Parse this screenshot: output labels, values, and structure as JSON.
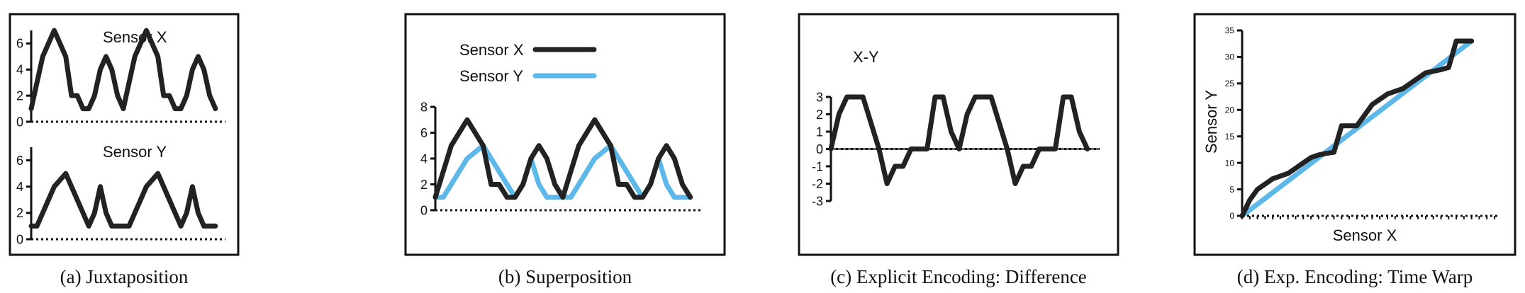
{
  "colors": {
    "sensor_x": "#222222",
    "sensor_y": "#5bb8e8",
    "frame": "#111111"
  },
  "captions": {
    "a": "(a)  Juxtaposition",
    "b": "(b)  Superposition",
    "c": "(c)  Explicit Encoding: Difference",
    "d": "(d)  Exp. Encoding: Time Warp"
  },
  "chart_data": [
    {
      "id": "a_top",
      "type": "line",
      "title": "Sensor X",
      "ylim": [
        0,
        7
      ],
      "xlim": [
        0,
        33
      ],
      "yticks": [
        "0",
        "2",
        "4",
        "6"
      ],
      "series": [
        {
          "values": [
            1,
            3,
            5,
            6,
            7,
            6,
            5,
            2,
            2,
            1,
            1,
            2,
            4,
            5,
            4,
            2,
            1,
            3,
            5,
            6,
            7,
            6,
            5,
            2,
            2,
            1,
            1,
            2,
            4,
            5,
            4,
            2,
            1
          ]
        }
      ]
    },
    {
      "id": "a_bottom",
      "type": "line",
      "title": "Sensor Y",
      "ylim": [
        0,
        7
      ],
      "xlim": [
        0,
        33
      ],
      "yticks": [
        "0",
        "2",
        "4",
        "6"
      ],
      "series": [
        {
          "values": [
            1,
            1,
            2,
            3,
            4,
            4.5,
            5,
            4,
            3,
            2,
            1,
            2,
            4,
            2,
            1,
            1,
            1,
            1,
            2,
            3,
            4,
            4.5,
            5,
            4,
            3,
            2,
            1,
            2,
            4,
            2,
            1,
            1,
            1
          ]
        }
      ]
    },
    {
      "id": "b",
      "type": "line",
      "ylim": [
        0,
        8
      ],
      "xlim": [
        0,
        33
      ],
      "yticks": [
        "0",
        "2",
        "4",
        "6",
        "8"
      ],
      "legend": "top-left",
      "series": [
        {
          "name": "Sensor X",
          "values": [
            1,
            3,
            5,
            6,
            7,
            6,
            5,
            2,
            2,
            1,
            1,
            2,
            4,
            5,
            4,
            2,
            1,
            3,
            5,
            6,
            7,
            6,
            5,
            2,
            2,
            1,
            1,
            2,
            4,
            5,
            4,
            2,
            1
          ]
        },
        {
          "name": "Sensor Y",
          "values": [
            1,
            1,
            2,
            3,
            4,
            4.5,
            5,
            4,
            3,
            2,
            1,
            2,
            4,
            2,
            1,
            1,
            1,
            1,
            2,
            3,
            4,
            4.5,
            5,
            4,
            3,
            2,
            1,
            2,
            4,
            2,
            1,
            1,
            1
          ]
        }
      ]
    },
    {
      "id": "c",
      "type": "line",
      "title": "X-Y",
      "ylim": [
        -3,
        3
      ],
      "xlim": [
        0,
        33
      ],
      "yticks": [
        "-3",
        "-2",
        "-1",
        "0",
        "1",
        "2",
        "3"
      ],
      "series": [
        {
          "values": [
            0,
            2,
            3,
            3,
            3,
            1.5,
            0,
            -2,
            -1,
            -1,
            0,
            0,
            0,
            3,
            3,
            1,
            0,
            2,
            3,
            3,
            3,
            1.5,
            0,
            -2,
            -1,
            -1,
            0,
            0,
            0,
            3,
            3,
            1,
            0
          ]
        }
      ]
    },
    {
      "id": "d",
      "type": "line",
      "xlabel": "Sensor X",
      "ylabel": "Sensor Y",
      "ylim": [
        0,
        35
      ],
      "xlim": [
        0,
        33
      ],
      "yticks": [
        "0",
        "5",
        "10",
        "15",
        "20",
        "25",
        "30",
        "35"
      ],
      "series": [
        {
          "values": [
            0,
            3,
            5,
            6,
            7,
            7.5,
            8,
            9,
            10,
            11,
            11.5,
            11.8,
            12,
            17,
            17,
            17,
            19,
            21,
            22,
            23,
            23.5,
            24,
            25,
            26,
            27,
            27.3,
            27.6,
            28,
            33,
            33,
            33
          ]
        },
        {
          "values": [
            0,
            1.1,
            2.2,
            3.3,
            4.4,
            5.5,
            6.6,
            7.7,
            8.8,
            9.9,
            11,
            12.1,
            13.2,
            14.3,
            15.4,
            16.5,
            17.6,
            18.7,
            19.8,
            20.9,
            22,
            23.1,
            24.2,
            25.3,
            26.4,
            27.5,
            28.6,
            29.7,
            30.8,
            31.9,
            33
          ]
        }
      ]
    }
  ]
}
